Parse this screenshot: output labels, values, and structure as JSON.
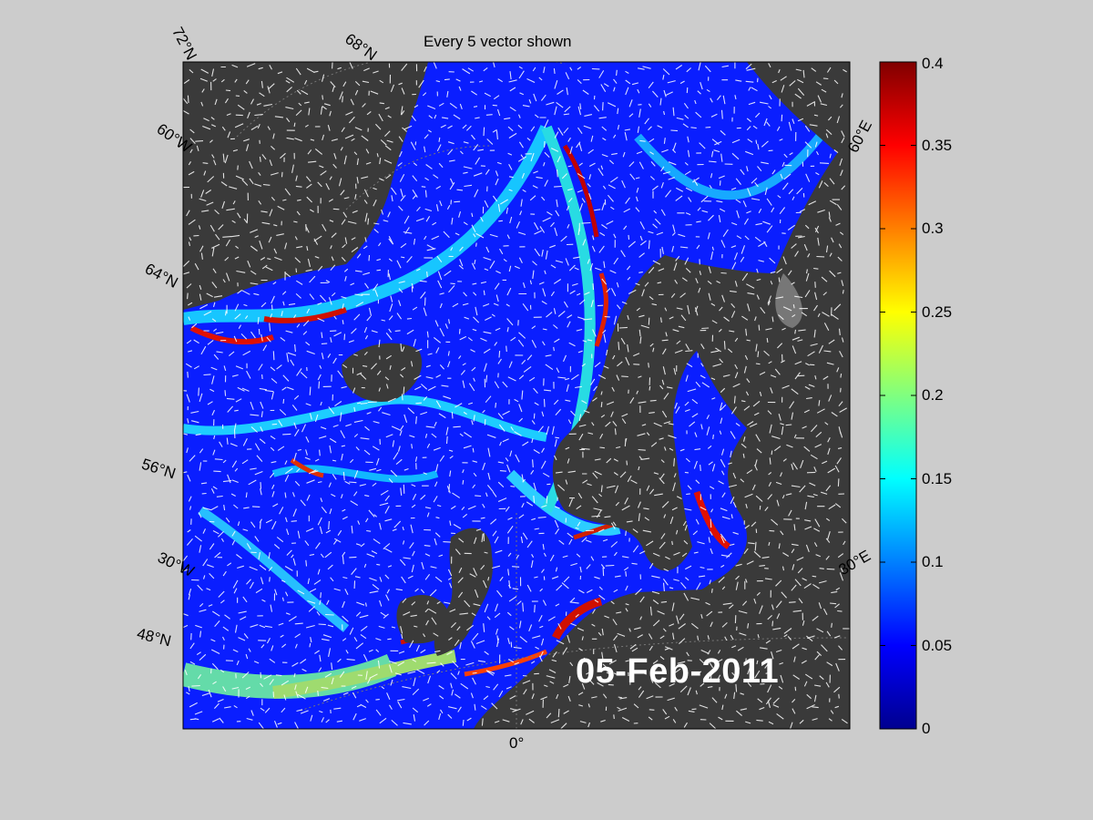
{
  "title": "Every 5 vector shown",
  "date": "05-Feb-2011",
  "lat_labels": [
    "72°N",
    "68°N",
    "64°N",
    "56°N",
    "48°N"
  ],
  "lon_labels": [
    "60°W",
    "30°W",
    "0°",
    "30°E",
    "60°E"
  ],
  "colorbar": {
    "ticks": [
      "0.4",
      "0.35",
      "0.3",
      "0.25",
      "0.2",
      "0.15",
      "0.1",
      "0.05",
      "0"
    ],
    "min": 0,
    "max": 0.4,
    "colormap": "jet"
  },
  "colors": {
    "background": "#cccccc",
    "land": "#3a3a3a",
    "ocean_low": "#0a1eff",
    "vectors": "#ffffff"
  }
}
